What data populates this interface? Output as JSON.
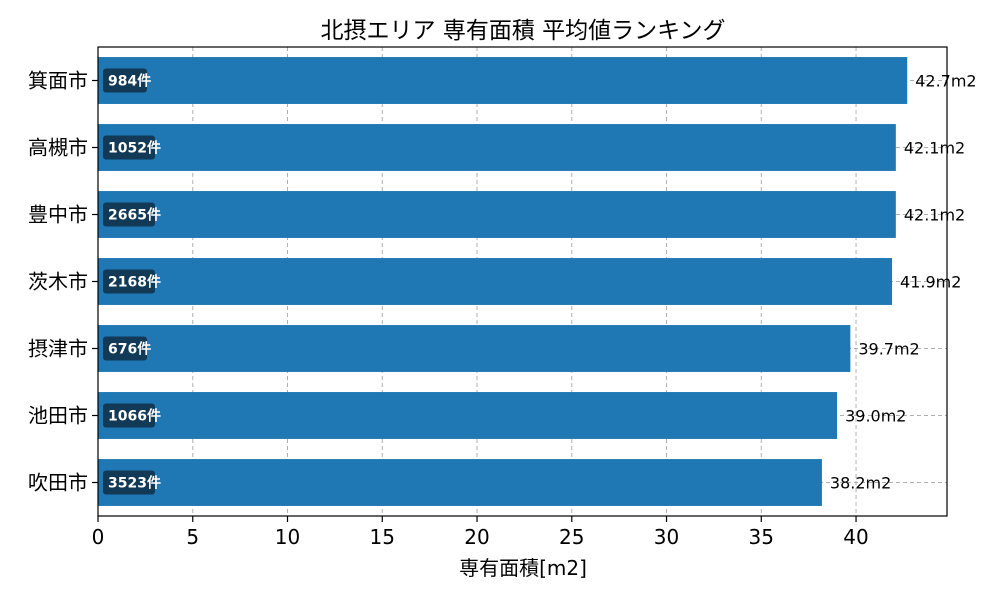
{
  "chart_data": {
    "type": "bar",
    "orientation": "horizontal",
    "title": "北摂エリア 専有面積 平均値ランキング",
    "xlabel": "専有面積[m2]",
    "ylabel": "",
    "xlim": [
      0,
      44.8
    ],
    "xticks": [
      0,
      5,
      10,
      15,
      20,
      25,
      30,
      35,
      40
    ],
    "grid": true,
    "bar_color": "#1f77b4",
    "badge_color": "#123a57",
    "categories": [
      "箕面市",
      "高槻市",
      "豊中市",
      "茨木市",
      "摂津市",
      "池田市",
      "吹田市"
    ],
    "values": [
      42.7,
      42.1,
      42.1,
      41.9,
      39.7,
      39.0,
      38.2
    ],
    "value_labels": [
      "42.7m2",
      "42.1m2",
      "42.1m2",
      "41.9m2",
      "39.7m2",
      "39.0m2",
      "38.2m2"
    ],
    "count_labels": [
      "984件",
      "1052件",
      "2665件",
      "2168件",
      "676件",
      "1066件",
      "3523件"
    ]
  }
}
